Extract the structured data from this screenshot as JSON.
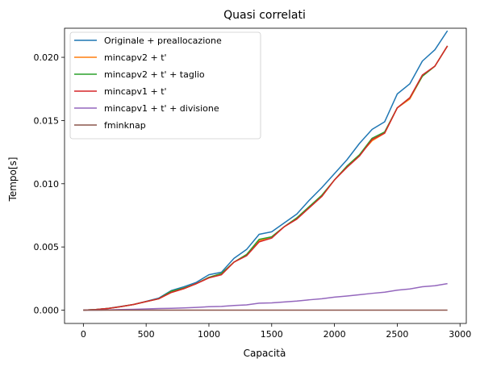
{
  "chart_data": {
    "type": "line",
    "title": "Quasi correlati",
    "xlabel": "Capacità",
    "ylabel": "Tempo[s]",
    "xlim": [
      -150,
      3050
    ],
    "ylim": [
      -0.00105,
      0.0223
    ],
    "xticks": [
      0,
      500,
      1000,
      1500,
      2000,
      2500,
      3000
    ],
    "xtick_labels": [
      "0",
      "500",
      "1000",
      "1500",
      "2000",
      "2500",
      "3000"
    ],
    "yticks": [
      0.0,
      0.005,
      0.01,
      0.015,
      0.02
    ],
    "ytick_labels": [
      "0.000",
      "0.005",
      "0.010",
      "0.015",
      "0.020"
    ],
    "grid": false,
    "legend_position": "top-left",
    "x": [
      0,
      100,
      200,
      300,
      400,
      500,
      600,
      700,
      800,
      900,
      1000,
      1100,
      1200,
      1300,
      1400,
      1500,
      1600,
      1700,
      1800,
      1900,
      2000,
      2100,
      2200,
      2300,
      2400,
      2500,
      2600,
      2700,
      2800,
      2900
    ],
    "series": [
      {
        "name": "Originale + preallocazione",
        "color": "#1f77b4",
        "values": [
          0.0,
          5e-05,
          0.00015,
          0.0003,
          0.00045,
          0.0007,
          0.00095,
          0.00155,
          0.00185,
          0.0022,
          0.0028,
          0.003,
          0.0041,
          0.0048,
          0.006,
          0.0062,
          0.0069,
          0.0076,
          0.0087,
          0.0097,
          0.0108,
          0.0119,
          0.0132,
          0.0143,
          0.0149,
          0.0171,
          0.0179,
          0.0197,
          0.0206,
          0.0221
        ]
      },
      {
        "name": "mincapv2 + t'",
        "color": "#ff7f0e",
        "values": [
          0.0,
          5e-05,
          0.00014,
          0.00028,
          0.00045,
          0.00068,
          0.0009,
          0.0014,
          0.0017,
          0.0021,
          0.0026,
          0.0029,
          0.0038,
          0.0044,
          0.0055,
          0.0058,
          0.0066,
          0.0073,
          0.0082,
          0.009,
          0.0103,
          0.0114,
          0.0123,
          0.0134,
          0.014,
          0.016,
          0.0167,
          0.0185,
          0.0193,
          0.0209
        ]
      },
      {
        "name": "mincapv2 + t' + taglio",
        "color": "#2ca02c",
        "values": [
          0.0,
          5e-05,
          0.00014,
          0.00028,
          0.00045,
          0.00068,
          0.0009,
          0.0015,
          0.00175,
          0.0021,
          0.0026,
          0.0029,
          0.0038,
          0.0044,
          0.0056,
          0.0058,
          0.0066,
          0.0073,
          0.0082,
          0.0091,
          0.0103,
          0.0114,
          0.0123,
          0.0136,
          0.0141,
          0.016,
          0.0168,
          0.0185,
          0.0193,
          0.0209
        ]
      },
      {
        "name": "mincapv1 + t'",
        "color": "#d62728",
        "values": [
          0.0,
          5e-05,
          0.00014,
          0.00028,
          0.00045,
          0.00068,
          0.0009,
          0.0014,
          0.0017,
          0.0021,
          0.00255,
          0.0028,
          0.0038,
          0.0043,
          0.0054,
          0.0057,
          0.0066,
          0.0072,
          0.0081,
          0.009,
          0.0103,
          0.0113,
          0.0122,
          0.0135,
          0.014,
          0.016,
          0.0168,
          0.0186,
          0.0193,
          0.0209
        ]
      },
      {
        "name": "mincapv1 + t' + divisione",
        "color": "#9467bd",
        "values": [
          0.0,
          0.0,
          2e-05,
          5e-05,
          7e-05,
          0.0001,
          0.00013,
          0.00015,
          0.00018,
          0.00022,
          0.00027,
          0.0003,
          0.00037,
          0.00042,
          0.00055,
          0.00058,
          0.00065,
          0.00072,
          0.00082,
          0.0009,
          0.00103,
          0.00112,
          0.00122,
          0.00133,
          0.00142,
          0.00158,
          0.00168,
          0.00185,
          0.00193,
          0.0021
        ]
      },
      {
        "name": "fminknap",
        "color": "#8c564b",
        "values": [
          0.0,
          0.0,
          0.0,
          0.0,
          0.0,
          0.0,
          0.0,
          0.0,
          0.0,
          0.0,
          0.0,
          0.0,
          0.0,
          0.0,
          0.0,
          0.0,
          0.0,
          0.0,
          0.0,
          0.0,
          0.0,
          0.0,
          0.0,
          0.0,
          0.0,
          0.0,
          0.0,
          0.0,
          0.0,
          0.0
        ]
      }
    ]
  }
}
